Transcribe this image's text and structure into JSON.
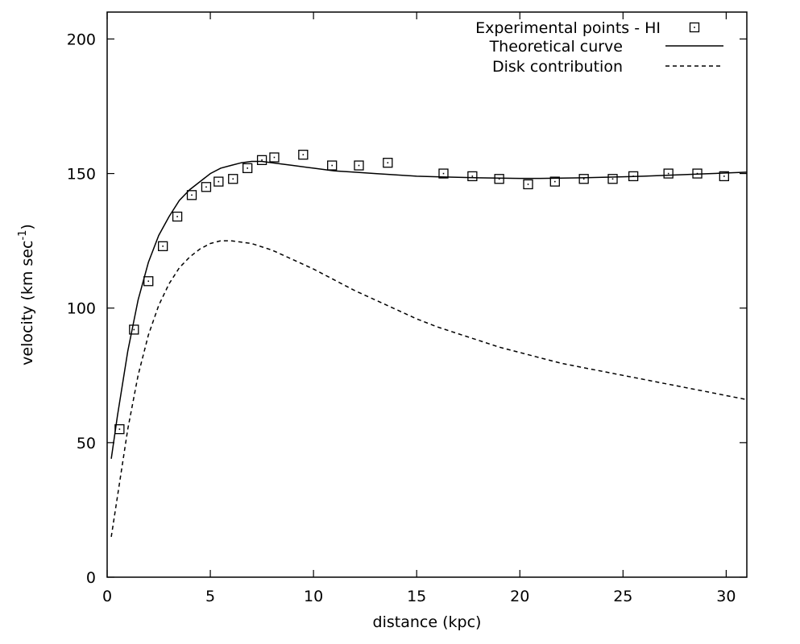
{
  "chart_data": {
    "type": "scatter",
    "xlabel": "distance (kpc)",
    "ylabel": "velocity (km sec",
    "ylabel_sup": "-1",
    "ylabel_close": ")",
    "xlim": [
      0,
      31
    ],
    "ylim": [
      0,
      210
    ],
    "x_ticks": [
      0,
      5,
      10,
      15,
      20,
      25,
      30
    ],
    "y_ticks": [
      0,
      50,
      100,
      150,
      200
    ],
    "grid": false,
    "legend_position": "top-right",
    "series": [
      {
        "name": "Experimental points - HI",
        "style": "open-square-with-dot",
        "x": [
          0.6,
          1.3,
          2.0,
          2.7,
          3.4,
          4.1,
          4.8,
          5.4,
          6.1,
          6.8,
          7.5,
          8.1,
          9.5,
          10.9,
          12.2,
          13.6,
          16.3,
          17.7,
          19.0,
          20.4,
          21.7,
          23.1,
          24.5,
          25.5,
          27.2,
          28.6,
          29.9
        ],
        "y": [
          55,
          92,
          110,
          123,
          134,
          142,
          145,
          147,
          148,
          152,
          155,
          156,
          157,
          153,
          153,
          154,
          150,
          149,
          148,
          146,
          147,
          148,
          148,
          149,
          150,
          150,
          149
        ]
      },
      {
        "name": "Theoretical curve",
        "style": "solid",
        "x": [
          0.2,
          0.5,
          1.0,
          1.5,
          2.0,
          2.5,
          3.0,
          3.5,
          4.0,
          4.5,
          5.0,
          5.5,
          6.0,
          6.5,
          7.0,
          7.5,
          8.0,
          8.5,
          9.0,
          10.0,
          11.0,
          12.0,
          13.0,
          14.0,
          15.0,
          16.0,
          17.0,
          18.0,
          19.0,
          20.0,
          21.0,
          22.0,
          23.0,
          24.0,
          25.0,
          26.0,
          27.0,
          28.0,
          29.0,
          30.0,
          31.0
        ],
        "y": [
          44,
          60,
          84,
          103,
          117,
          127,
          134,
          140,
          144,
          147,
          150,
          152,
          153,
          154,
          154.5,
          154.5,
          154,
          153.5,
          153,
          152,
          151,
          150.5,
          150,
          149.5,
          149,
          148.8,
          148.6,
          148.4,
          148.3,
          148.2,
          148.2,
          148.3,
          148.4,
          148.6,
          148.8,
          149.0,
          149.3,
          149.6,
          149.9,
          150.2,
          150.5
        ]
      },
      {
        "name": "Disk contribution",
        "style": "dashed",
        "x": [
          0.2,
          0.5,
          1.0,
          1.5,
          2.0,
          2.5,
          3.0,
          3.5,
          4.0,
          4.5,
          5.0,
          5.5,
          6.0,
          6.5,
          7.0,
          8.0,
          9.0,
          10.0,
          11.0,
          12.0,
          13.0,
          14.0,
          15.0,
          16.0,
          17.0,
          18.0,
          19.0,
          20.0,
          21.0,
          22.0,
          23.0,
          24.0,
          25.0,
          26.0,
          27.0,
          28.0,
          29.0,
          30.0,
          31.0
        ],
        "y": [
          15,
          30,
          55,
          75,
          90,
          101,
          109,
          115,
          119,
          122,
          124,
          125,
          125,
          124.5,
          124,
          121.5,
          118,
          114.5,
          110.5,
          106.5,
          103,
          99.5,
          96,
          93,
          90.5,
          88,
          85.5,
          83.5,
          81.5,
          79.5,
          78,
          76.5,
          75,
          73.5,
          72,
          70.5,
          69,
          67.5,
          66
        ]
      }
    ]
  }
}
